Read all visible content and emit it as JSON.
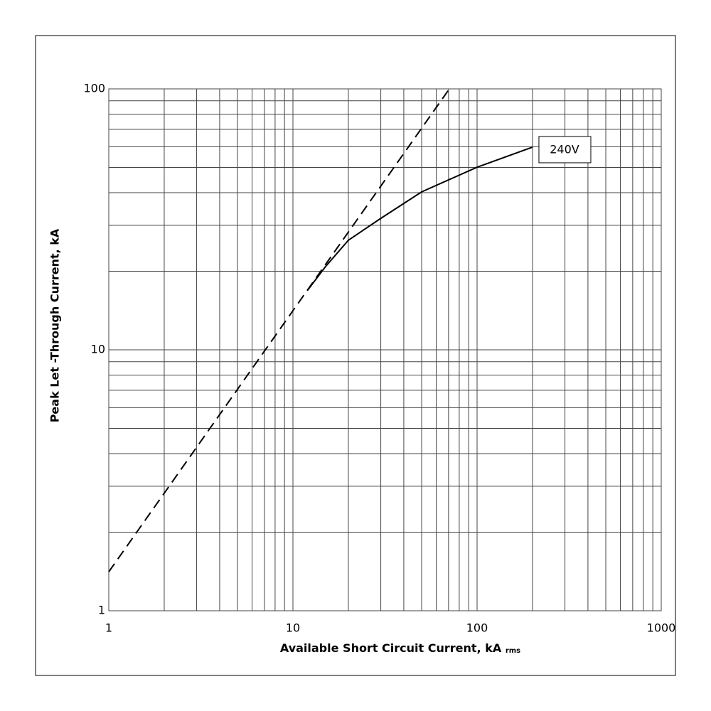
{
  "chart_data": {
    "type": "line",
    "xlabel": "Available Short Circuit Current, kA",
    "xlabel_sub": "rms",
    "ylabel": "Peak Let -Through Current, kA",
    "xscale": "log",
    "yscale": "log",
    "xlim": [
      1,
      1000
    ],
    "ylim": [
      1,
      100
    ],
    "xticks": [
      1,
      10,
      100,
      1000
    ],
    "yticks": [
      1,
      10,
      100
    ],
    "xminor": [
      2,
      3,
      4,
      5,
      6,
      7,
      8,
      9,
      20,
      30,
      40,
      50,
      60,
      70,
      80,
      90,
      200,
      300,
      400,
      500,
      600,
      700,
      800,
      900
    ],
    "yminor": [
      2,
      3,
      4,
      5,
      6,
      7,
      8,
      9,
      20,
      30,
      40,
      50,
      60,
      70,
      80,
      90
    ],
    "grid": true,
    "series": [
      {
        "x": [
          1,
          70.7
        ],
        "values": [
          1.41,
          100
        ],
        "color": "#000000",
        "dashed": true
      },
      {
        "name": "240V",
        "x": [
          12,
          15,
          20,
          30,
          50,
          100,
          200
        ],
        "values": [
          16.9,
          20.8,
          26.3,
          31.9,
          40.3,
          50.1,
          59.8
        ],
        "color": "#000000",
        "dashed": false
      }
    ]
  }
}
